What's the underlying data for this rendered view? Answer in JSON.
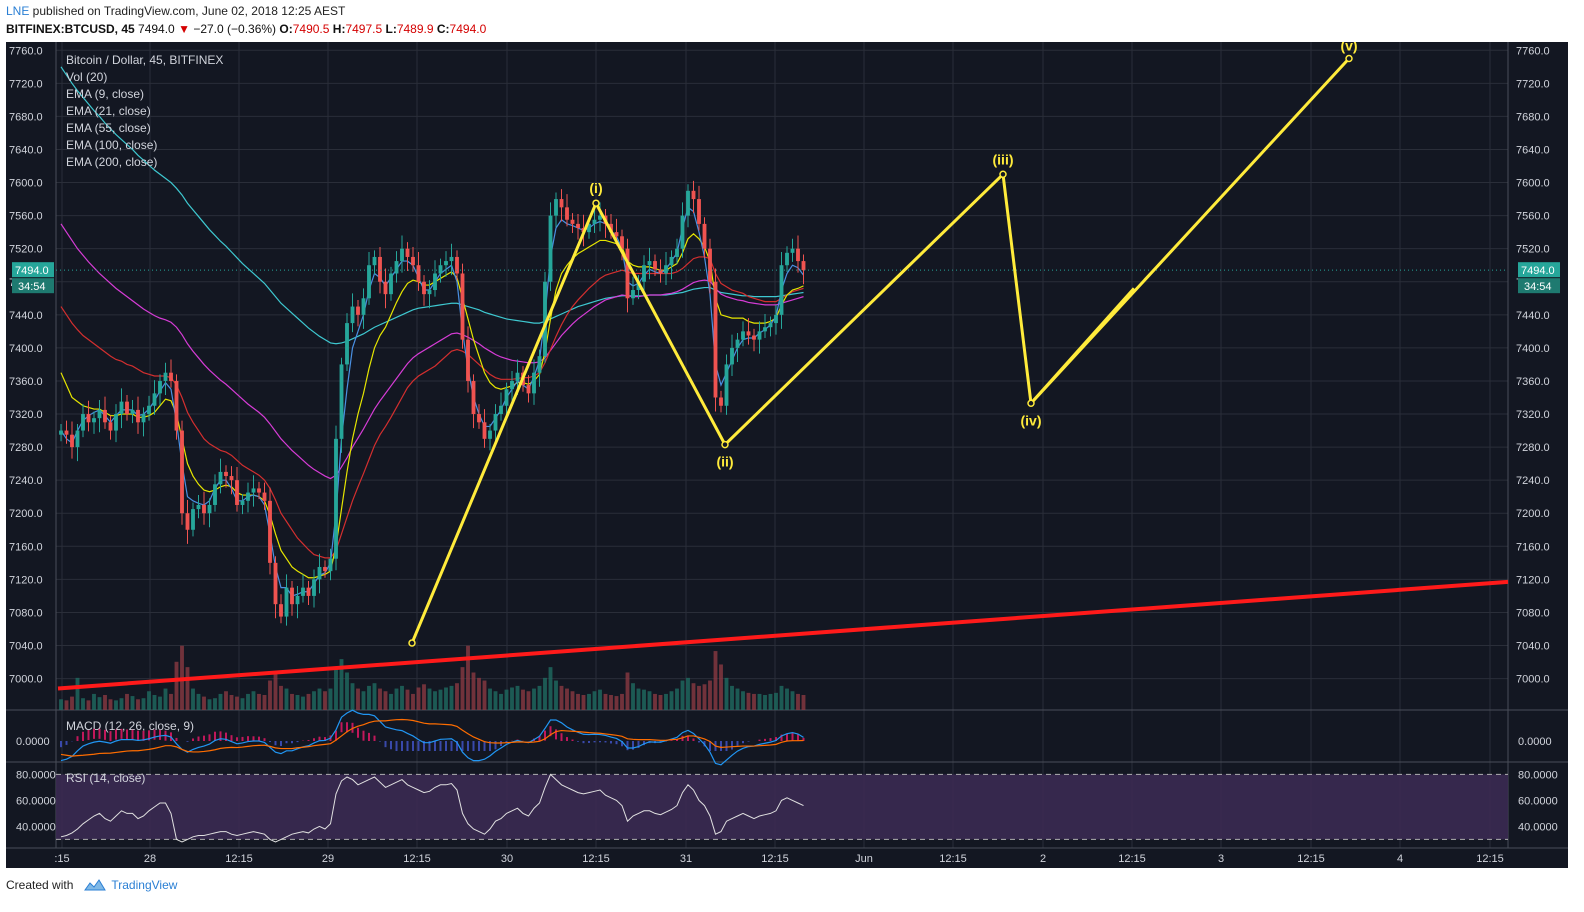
{
  "header": {
    "user": "LNE",
    "published_text": " published on TradingView.com, June 02, 2018 12:25 AEST",
    "symbol": "BITFINEX:BTCUSD, 45",
    "last": "7494.0",
    "arrow": "▼",
    "change": "−27.0 (−0.36%)",
    "o_label": "O:",
    "o_value": "7490.5",
    "h_label": "H:",
    "h_value": "7497.5",
    "l_label": "L:",
    "l_value": "7489.9",
    "c_label": "C:",
    "c_value": "7494.0"
  },
  "footer": {
    "created_with": "Created with",
    "brand": "TradingView",
    "logo_icon": "tradingview-cloud-icon"
  },
  "colors": {
    "background": "#131722",
    "grid": "#2a2e39",
    "up": "#26a69a",
    "down": "#ef5350",
    "ema9": "#4a90e2",
    "ema21": "#e6e600",
    "ema55": "#d32f2f",
    "ema100": "#d63cd6",
    "ema200": "#3ec8d0",
    "wave": "#ffeb3b",
    "trendline": "#ff1a1a",
    "rsi_band": "#3b2a52"
  },
  "chart_data": {
    "type": "candlestick",
    "title": "Bitcoin / Dollar, 45, BITFINEX",
    "indicators": [
      "Vol (20)",
      "EMA (9, close)",
      "EMA (21, close)",
      "EMA (55, close)",
      "EMA (100, close)",
      "EMA (200, close)"
    ],
    "y_ticks": [
      "7760.0",
      "7720.0",
      "7680.0",
      "7640.0",
      "7600.0",
      "7560.0",
      "7520.0",
      "7480.0",
      "7440.0",
      "7400.0",
      "7360.0",
      "7320.0",
      "7280.0",
      "7240.0",
      "7200.0",
      "7160.0",
      "7120.0",
      "7080.0",
      "7040.0",
      "7000.0"
    ],
    "ylim": [
      6962,
      7770
    ],
    "last_price_label": "7494.0",
    "countdown_label": "34:54",
    "x_ticks": [
      ":15",
      "28",
      "12:15",
      "29",
      "12:15",
      "30",
      "12:15",
      "31",
      "12:15",
      "Jun",
      "12:15",
      "2",
      "12:15",
      "3",
      "12:15",
      "4",
      "12:15"
    ],
    "close_series": [
      7300,
      7295,
      7280,
      7300,
      7320,
      7310,
      7315,
      7325,
      7310,
      7300,
      7320,
      7335,
      7320,
      7325,
      7310,
      7320,
      7330,
      7345,
      7360,
      7370,
      7360,
      7300,
      7200,
      7180,
      7205,
      7210,
      7200,
      7210,
      7235,
      7250,
      7245,
      7240,
      7210,
      7215,
      7225,
      7230,
      7225,
      7215,
      7140,
      7090,
      7075,
      7110,
      7090,
      7100,
      7110,
      7100,
      7120,
      7135,
      7130,
      7145,
      7290,
      7380,
      7430,
      7450,
      7440,
      7460,
      7500,
      7510,
      7480,
      7465,
      7490,
      7505,
      7520,
      7510,
      7500,
      7480,
      7465,
      7470,
      7490,
      7500,
      7505,
      7510,
      7490,
      7410,
      7360,
      7320,
      7310,
      7290,
      7300,
      7320,
      7330,
      7350,
      7360,
      7370,
      7355,
      7345,
      7370,
      7390,
      7480,
      7560,
      7580,
      7570,
      7555,
      7550,
      7545,
      7540,
      7550,
      7555,
      7560,
      7550,
      7540,
      7535,
      7520,
      7460,
      7470,
      7480,
      7500,
      7505,
      7495,
      7490,
      7500,
      7510,
      7520,
      7560,
      7590,
      7580,
      7550,
      7520,
      7480,
      7340,
      7330,
      7380,
      7400,
      7410,
      7420,
      7415,
      7410,
      7420,
      7425,
      7430,
      7440,
      7500,
      7515,
      7520,
      7505,
      7494
    ],
    "ema9": [
      7300,
      7290,
      7285,
      7300,
      7312,
      7318,
      7322,
      7325,
      7318,
      7310,
      7318,
      7325,
      7325,
      7325,
      7318,
      7320,
      7326,
      7336,
      7348,
      7358,
      7350,
      7310,
      7260,
      7220,
      7215,
      7212,
      7210,
      7215,
      7230,
      7240,
      7240,
      7230,
      7215,
      7215,
      7220,
      7222,
      7220,
      7210,
      7175,
      7135,
      7110,
      7110,
      7100,
      7102,
      7105,
      7105,
      7115,
      7125,
      7128,
      7140,
      7200,
      7290,
      7350,
      7400,
      7420,
      7440,
      7470,
      7490,
      7485,
      7475,
      7485,
      7495,
      7505,
      7505,
      7500,
      7485,
      7470,
      7470,
      7480,
      7490,
      7495,
      7500,
      7480,
      7420,
      7375,
      7340,
      7320,
      7305,
      7305,
      7315,
      7325,
      7340,
      7350,
      7360,
      7355,
      7350,
      7365,
      7385,
      7440,
      7510,
      7545,
      7555,
      7550,
      7548,
      7545,
      7542,
      7545,
      7550,
      7553,
      7550,
      7542,
      7535,
      7520,
      7480,
      7475,
      7478,
      7488,
      7495,
      7492,
      7490,
      7495,
      7505,
      7515,
      7545,
      7570,
      7565,
      7540,
      7510,
      7465,
      7380,
      7355,
      7370,
      7385,
      7400,
      7410,
      7412,
      7412,
      7418,
      7422,
      7428,
      7438,
      7470,
      7490,
      7500,
      7497,
      7488
    ],
    "ema21": [
      7370,
      7355,
      7340,
      7335,
      7330,
      7328,
      7326,
      7326,
      7322,
      7318,
      7318,
      7320,
      7320,
      7320,
      7316,
      7316,
      7318,
      7322,
      7330,
      7338,
      7336,
      7320,
      7290,
      7260,
      7245,
      7235,
      7228,
      7226,
      7228,
      7232,
      7234,
      7232,
      7225,
      7222,
      7222,
      7222,
      7220,
      7215,
      7198,
      7175,
      7155,
      7145,
      7135,
      7130,
      7126,
      7122,
      7122,
      7124,
      7126,
      7130,
      7160,
      7205,
      7250,
      7290,
      7320,
      7345,
      7375,
      7400,
      7415,
      7425,
      7440,
      7455,
      7468,
      7478,
      7482,
      7480,
      7476,
      7476,
      7480,
      7484,
      7488,
      7492,
      7485,
      7460,
      7435,
      7410,
      7390,
      7370,
      7358,
      7352,
      7350,
      7352,
      7354,
      7358,
      7358,
      7356,
      7360,
      7368,
      7395,
      7435,
      7470,
      7490,
      7500,
      7508,
      7514,
      7518,
      7522,
      7526,
      7530,
      7530,
      7528,
      7526,
      7522,
      7505,
      7500,
      7498,
      7498,
      7498,
      7496,
      7494,
      7494,
      7498,
      7502,
      7515,
      7532,
      7538,
      7532,
      7522,
      7505,
      7460,
      7440,
      7438,
      7436,
      7436,
      7436,
      7432,
      7430,
      7430,
      7430,
      7432,
      7436,
      7452,
      7464,
      7470,
      7472,
      7475
    ],
    "ema55": [
      7450,
      7440,
      7430,
      7422,
      7415,
      7410,
      7405,
      7400,
      7395,
      7390,
      7386,
      7384,
      7380,
      7378,
      7374,
      7370,
      7368,
      7366,
      7366,
      7366,
      7364,
      7355,
      7340,
      7322,
      7310,
      7300,
      7290,
      7284,
      7280,
      7276,
      7274,
      7270,
      7264,
      7258,
      7254,
      7250,
      7246,
      7240,
      7230,
      7216,
      7200,
      7190,
      7180,
      7170,
      7163,
      7156,
      7150,
      7148,
      7146,
      7146,
      7155,
      7175,
      7195,
      7215,
      7232,
      7248,
      7265,
      7282,
      7295,
      7305,
      7316,
      7328,
      7340,
      7352,
      7360,
      7366,
      7370,
      7374,
      7378,
      7384,
      7390,
      7396,
      7398,
      7396,
      7392,
      7386,
      7380,
      7374,
      7368,
      7364,
      7362,
      7362,
      7362,
      7363,
      7364,
      7364,
      7366,
      7370,
      7382,
      7398,
      7414,
      7428,
      7440,
      7450,
      7458,
      7465,
      7472,
      7478,
      7484,
      7488,
      7490,
      7492,
      7494,
      7492,
      7490,
      7490,
      7490,
      7490,
      7490,
      7490,
      7490,
      7490,
      7492,
      7496,
      7502,
      7508,
      7510,
      7510,
      7508,
      7490,
      7478,
      7474,
      7470,
      7468,
      7466,
      7462,
      7460,
      7458,
      7456,
      7456,
      7456,
      7460,
      7464,
      7468,
      7470,
      7472
    ],
    "ema100": [
      7550,
      7540,
      7530,
      7520,
      7512,
      7504,
      7497,
      7490,
      7484,
      7478,
      7472,
      7467,
      7462,
      7457,
      7452,
      7447,
      7443,
      7439,
      7436,
      7434,
      7431,
      7425,
      7416,
      7405,
      7396,
      7388,
      7380,
      7373,
      7367,
      7361,
      7356,
      7350,
      7344,
      7338,
      7332,
      7327,
      7322,
      7316,
      7308,
      7299,
      7290,
      7283,
      7276,
      7270,
      7264,
      7258,
      7253,
      7249,
      7245,
      7242,
      7246,
      7256,
      7267,
      7280,
      7291,
      7302,
      7314,
      7326,
      7336,
      7345,
      7354,
      7363,
      7372,
      7381,
      7388,
      7393,
      7397,
      7401,
      7405,
      7409,
      7413,
      7417,
      7418,
      7416,
      7413,
      7409,
      7405,
      7400,
      7396,
      7392,
      7389,
      7387,
      7385,
      7384,
      7383,
      7382,
      7382,
      7383,
      7388,
      7397,
      7406,
      7415,
      7422,
      7429,
      7435,
      7440,
      7445,
      7450,
      7454,
      7458,
      7460,
      7462,
      7464,
      7463,
      7462,
      7462,
      7463,
      7464,
      7464,
      7464,
      7465,
      7466,
      7468,
      7471,
      7475,
      7479,
      7481,
      7482,
      7481,
      7472,
      7465,
      7462,
      7460,
      7458,
      7457,
      7455,
      7454,
      7453,
      7452,
      7452,
      7452,
      7454,
      7456,
      7458,
      7460,
      7462
    ],
    "ema200": [
      7740,
      7730,
      7720,
      7711,
      7703,
      7695,
      7687,
      7680,
      7672,
      7665,
      7658,
      7652,
      7646,
      7640,
      7633,
      7627,
      7621,
      7615,
      7610,
      7605,
      7600,
      7593,
      7585,
      7575,
      7567,
      7559,
      7551,
      7543,
      7536,
      7529,
      7523,
      7516,
      7509,
      7502,
      7496,
      7490,
      7484,
      7478,
      7470,
      7462,
      7454,
      7448,
      7442,
      7436,
      7430,
      7424,
      7419,
      7414,
      7410,
      7406,
      7405,
      7406,
      7408,
      7411,
      7414,
      7417,
      7421,
      7425,
      7428,
      7431,
      7434,
      7437,
      7440,
      7443,
      7446,
      7448,
      7449,
      7450,
      7451,
      7452,
      7453,
      7454,
      7454,
      7452,
      7450,
      7448,
      7446,
      7443,
      7441,
      7439,
      7437,
      7435,
      7434,
      7433,
      7432,
      7431,
      7430,
      7430,
      7432,
      7435,
      7438,
      7441,
      7444,
      7447,
      7450,
      7452,
      7454,
      7456,
      7458,
      7460,
      7461,
      7462,
      7463,
      7463,
      7463,
      7463,
      7463,
      7464,
      7464,
      7464,
      7464,
      7465,
      7466,
      7467,
      7469,
      7471,
      7472,
      7473,
      7473,
      7470,
      7467,
      7466,
      7465,
      7464,
      7463,
      7463,
      7462,
      7462,
      7462,
      7462,
      7462,
      7463,
      7464,
      7465,
      7466,
      7467
    ],
    "volume": [
      20,
      18,
      25,
      60,
      22,
      18,
      30,
      24,
      28,
      20,
      18,
      22,
      30,
      26,
      20,
      22,
      35,
      28,
      25,
      40,
      30,
      90,
      120,
      80,
      40,
      30,
      25,
      20,
      22,
      30,
      35,
      28,
      25,
      22,
      30,
      35,
      30,
      28,
      55,
      70,
      45,
      40,
      30,
      28,
      25,
      30,
      35,
      40,
      35,
      40,
      80,
      95,
      70,
      50,
      40,
      35,
      45,
      50,
      40,
      35,
      30,
      40,
      45,
      38,
      30,
      42,
      48,
      40,
      35,
      38,
      42,
      45,
      50,
      80,
      120,
      70,
      60,
      55,
      40,
      35,
      30,
      38,
      42,
      45,
      38,
      35,
      40,
      45,
      60,
      80,
      55,
      45,
      40,
      35,
      30,
      28,
      30,
      35,
      38,
      30,
      28,
      26,
      30,
      70,
      50,
      40,
      38,
      35,
      30,
      28,
      30,
      35,
      40,
      55,
      60,
      50,
      45,
      48,
      55,
      110,
      85,
      60,
      45,
      40,
      35,
      32,
      30,
      30,
      28,
      30,
      32,
      45,
      40,
      35,
      30,
      28
    ],
    "wave_labels": [
      {
        "label": "(i)",
        "price": 7575
      },
      {
        "label": "(ii)",
        "price": 7283
      },
      {
        "label": "(iii)",
        "price": 7610
      },
      {
        "label": "(iv)",
        "price": 7333
      },
      {
        "label": "(v)",
        "price": 7750
      }
    ],
    "wave_start_price": 7043,
    "macd": {
      "label": "MACD (12, 26, close, 9)",
      "tick": "0.0000"
    },
    "rsi": {
      "label": "RSI (14, close)",
      "ticks": [
        "80.0000",
        "60.0000",
        "40.0000"
      ],
      "values": [
        32,
        33,
        35,
        38,
        42,
        45,
        48,
        50,
        46,
        44,
        48,
        52,
        50,
        50,
        46,
        48,
        52,
        55,
        58,
        58,
        50,
        30,
        28,
        30,
        32,
        33,
        33,
        34,
        35,
        36,
        36,
        34,
        33,
        34,
        35,
        36,
        35,
        34,
        30,
        28,
        30,
        32,
        34,
        35,
        36,
        35,
        38,
        40,
        38,
        42,
        65,
        75,
        78,
        76,
        72,
        74,
        76,
        78,
        74,
        70,
        72,
        74,
        76,
        72,
        70,
        68,
        66,
        67,
        70,
        72,
        72,
        73,
        68,
        50,
        42,
        38,
        36,
        34,
        38,
        44,
        46,
        50,
        52,
        54,
        50,
        48,
        54,
        58,
        70,
        80,
        76,
        72,
        70,
        68,
        66,
        65,
        66,
        67,
        68,
        64,
        62,
        60,
        56,
        44,
        48,
        50,
        52,
        52,
        50,
        49,
        51,
        53,
        56,
        66,
        72,
        68,
        60,
        56,
        48,
        34,
        36,
        44,
        46,
        48,
        50,
        48,
        46,
        48,
        49,
        50,
        52,
        60,
        62,
        60,
        58,
        56
      ]
    }
  }
}
